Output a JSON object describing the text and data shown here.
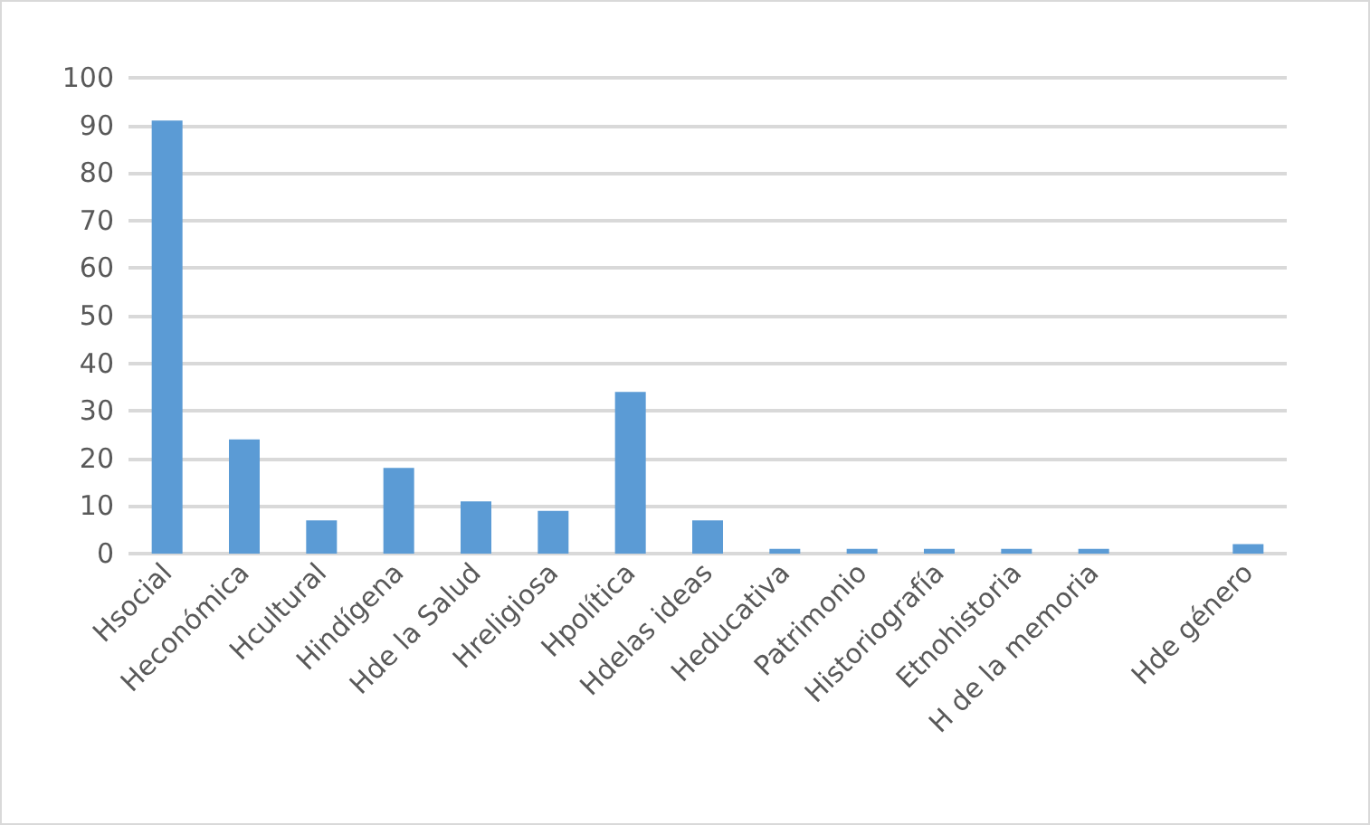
{
  "chart_data": {
    "type": "bar",
    "categories": [
      "Hsocial",
      "Heconómica",
      "Hcultural",
      "Hindígena",
      "Hde la Salud",
      "Hreligiosa",
      "Hpolítica",
      "Hdelas ideas",
      "Heducativa",
      "Patrimonio",
      "Historiografía",
      "Etnohistoria",
      "H de la memoria",
      null,
      "Hde género"
    ],
    "values": [
      91,
      24,
      7,
      18,
      11,
      9,
      34,
      7,
      1,
      1,
      1,
      1,
      1,
      null,
      2
    ],
    "color": "#5b9bd5",
    "ylim": [
      0,
      100
    ],
    "yticks": [
      0,
      10,
      20,
      30,
      40,
      50,
      60,
      70,
      80,
      90,
      100
    ],
    "grid": "y"
  }
}
